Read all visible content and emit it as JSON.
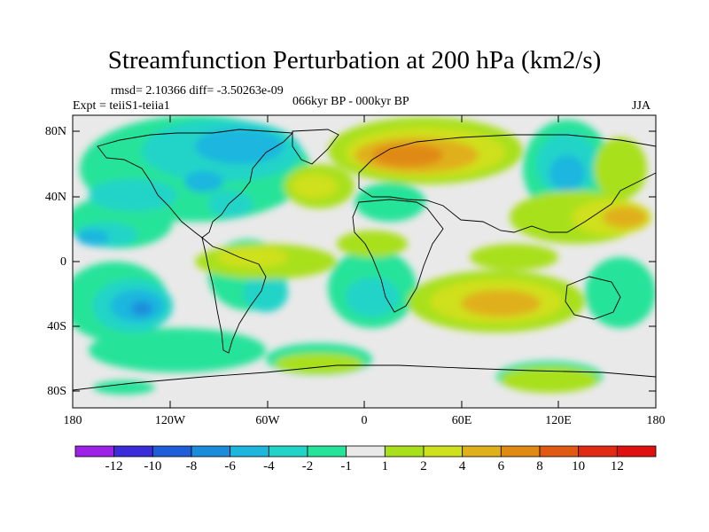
{
  "title": "Streamfunction Perturbation at 200 hPa (km2/s)",
  "stats": "rmsd= 2.10366 diff= -3.50263e-09",
  "experiment": "Expt = teiiS1-teiia1",
  "period": "066kyr BP - 000kyr BP",
  "season": "JJA",
  "lat_labels": [
    "80N",
    "40N",
    "0",
    "40S",
    "80S"
  ],
  "lon_labels": [
    "180",
    "120W",
    "60W",
    "0",
    "60E",
    "120E",
    "180"
  ],
  "colorbar": {
    "labels": [
      "-12",
      "-10",
      "-8",
      "-6",
      "-4",
      "-2",
      "-1",
      "1",
      "2",
      "4",
      "6",
      "8",
      "10",
      "12"
    ],
    "colors": [
      "#9d22e8",
      "#3a2cd8",
      "#1f5ed8",
      "#1b8cdc",
      "#1fb6de",
      "#22d4c8",
      "#26e39a",
      "#e9e9e9",
      "#a9e01c",
      "#cfe01c",
      "#e0b01a",
      "#e08a14",
      "#e05a14",
      "#e02a14",
      "#e01010"
    ]
  }
}
